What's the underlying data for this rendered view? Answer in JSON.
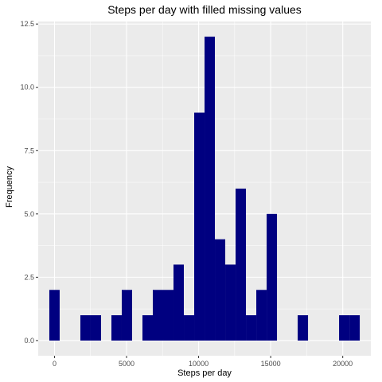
{
  "chart_data": {
    "type": "bar",
    "title": "Steps per day with filled missing values",
    "xlabel": "Steps per day",
    "ylabel": "Frequency",
    "bin_width": 718,
    "bins": [
      {
        "start": -359,
        "count": 2
      },
      {
        "start": 359,
        "count": 0
      },
      {
        "start": 1077,
        "count": 0
      },
      {
        "start": 1795,
        "count": 1
      },
      {
        "start": 2513,
        "count": 1
      },
      {
        "start": 3231,
        "count": 0
      },
      {
        "start": 3949,
        "count": 1
      },
      {
        "start": 4667,
        "count": 2
      },
      {
        "start": 5385,
        "count": 0
      },
      {
        "start": 6103,
        "count": 1
      },
      {
        "start": 6821,
        "count": 2
      },
      {
        "start": 7539,
        "count": 2
      },
      {
        "start": 8257,
        "count": 3
      },
      {
        "start": 8975,
        "count": 1
      },
      {
        "start": 9693,
        "count": 9
      },
      {
        "start": 10411,
        "count": 12
      },
      {
        "start": 11129,
        "count": 4
      },
      {
        "start": 11847,
        "count": 3
      },
      {
        "start": 12565,
        "count": 6
      },
      {
        "start": 13283,
        "count": 1
      },
      {
        "start": 14001,
        "count": 2
      },
      {
        "start": 14719,
        "count": 5
      },
      {
        "start": 15437,
        "count": 0
      },
      {
        "start": 16155,
        "count": 0
      },
      {
        "start": 16873,
        "count": 1
      },
      {
        "start": 17591,
        "count": 0
      },
      {
        "start": 18309,
        "count": 0
      },
      {
        "start": 19027,
        "count": 0
      },
      {
        "start": 19745,
        "count": 1
      },
      {
        "start": 20463,
        "count": 1
      }
    ],
    "xlim": [
      -1130,
      21950
    ],
    "ylim": [
      -0.6,
      12.6
    ],
    "x_ticks": [
      0,
      5000,
      10000,
      15000,
      20000
    ],
    "x_tick_labels": [
      "0",
      "5000",
      "10000",
      "15000",
      "20000"
    ],
    "y_ticks": [
      0,
      2.5,
      5,
      7.5,
      10,
      12.5
    ],
    "y_tick_labels": [
      "0.0",
      "2.5",
      "5.0",
      "7.5",
      "10.0",
      "12.5"
    ],
    "grid": true,
    "bar_color": "#000080",
    "panel_color": "#ebebeb",
    "grid_color": "#ffffff"
  }
}
